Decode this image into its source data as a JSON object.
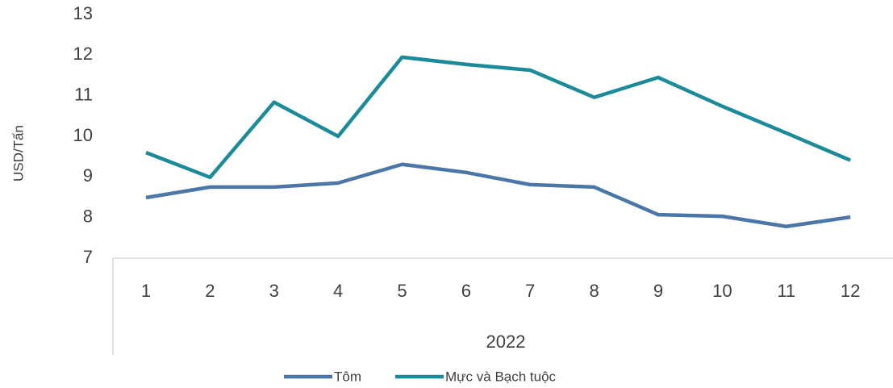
{
  "chart_data": {
    "type": "line",
    "ylabel": "USD/Tấn",
    "categories": [
      "1",
      "2",
      "3",
      "4",
      "5",
      "6",
      "7",
      "8",
      "9",
      "10",
      "11",
      "12"
    ],
    "category_group": "2022",
    "series": [
      {
        "name": "Tôm",
        "color": "#4a76a8",
        "values": [
          8.49,
          8.75,
          8.75,
          8.85,
          9.31,
          9.11,
          8.81,
          8.75,
          8.07,
          8.03,
          7.78,
          8.01
        ]
      },
      {
        "name": "Mực và Bạch tuộc",
        "color": "#1b8a99",
        "values": [
          9.6,
          8.99,
          10.84,
          10.0,
          11.95,
          11.77,
          11.63,
          10.96,
          11.45,
          10.74,
          10.08,
          9.41
        ]
      }
    ],
    "ylim": [
      7,
      13
    ],
    "yticks": [
      7,
      8,
      9,
      10,
      11,
      12,
      13
    ],
    "grid": false,
    "legend": "bottom"
  }
}
